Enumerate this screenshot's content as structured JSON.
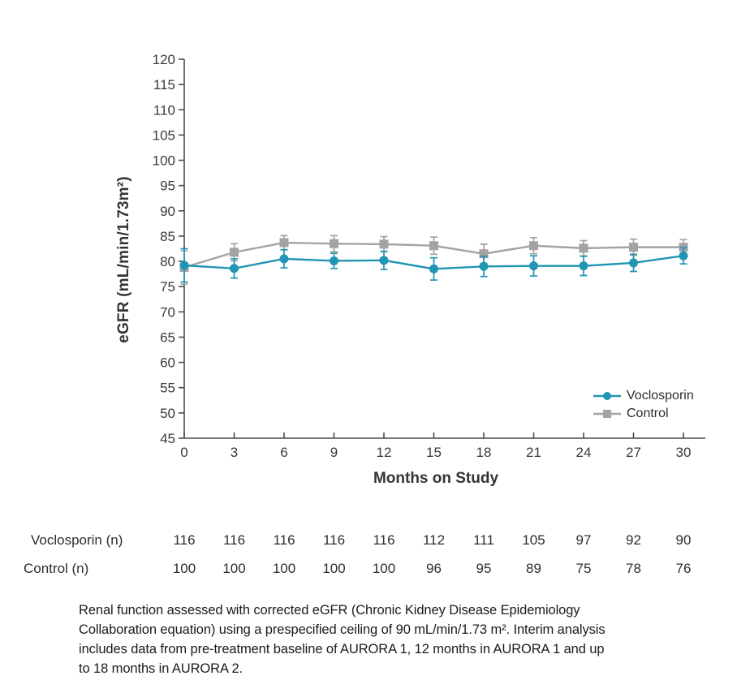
{
  "chart_data": {
    "type": "line",
    "title": "",
    "xlabel": "Months on Study",
    "ylabel": "eGFR (mL/min/1.73m²)",
    "x": [
      0,
      3,
      6,
      9,
      12,
      15,
      18,
      21,
      24,
      27,
      30
    ],
    "ylim": [
      45,
      120
    ],
    "ytick_step": 5,
    "grid": false,
    "legend_position": "bottom-right",
    "error_bars": true,
    "series": [
      {
        "name": "Voclosporin",
        "marker": "circle",
        "color": "#2095b4",
        "values": [
          79.2,
          78.6,
          80.5,
          80.1,
          80.2,
          78.5,
          79.0,
          79.1,
          79.1,
          79.7,
          81.1
        ],
        "errors": [
          3.3,
          1.9,
          1.8,
          1.5,
          1.8,
          2.2,
          2.0,
          2.0,
          1.9,
          1.7,
          1.6
        ]
      },
      {
        "name": "Control",
        "marker": "square",
        "color": "#a3a3a3",
        "values": [
          78.8,
          81.8,
          83.7,
          83.5,
          83.4,
          83.1,
          81.5,
          83.1,
          82.6,
          82.8,
          82.8
        ],
        "errors": [
          3.3,
          1.7,
          1.4,
          1.6,
          1.5,
          1.7,
          1.9,
          1.6,
          1.5,
          1.6,
          1.5
        ]
      }
    ]
  },
  "counts_table": {
    "rows": [
      {
        "label": "Voclosporin (n)",
        "values": [
          116,
          116,
          116,
          116,
          116,
          112,
          111,
          105,
          97,
          92,
          90
        ]
      },
      {
        "label": "Control (n)",
        "values": [
          100,
          100,
          100,
          100,
          100,
          96,
          95,
          89,
          75,
          78,
          76
        ]
      }
    ]
  },
  "footnote": {
    "text": "Renal function assessed with corrected eGFR (Chronic Kidney Disease Epidemiology\nCollaboration equation) using a prespecified ceiling of 90 mL/min/1.73 m². Interim analysis\nincludes data from pre-treatment baseline of AURORA 1, 12 months in AURORA 1 and up\nto 18 months in AURORA 2."
  },
  "colors": {
    "voclosporin": "#2095b4",
    "control": "#a3a3a3",
    "axis_line": "#4b4b4b",
    "tick_text": "#3a3a3a",
    "background": "#ffffff"
  }
}
